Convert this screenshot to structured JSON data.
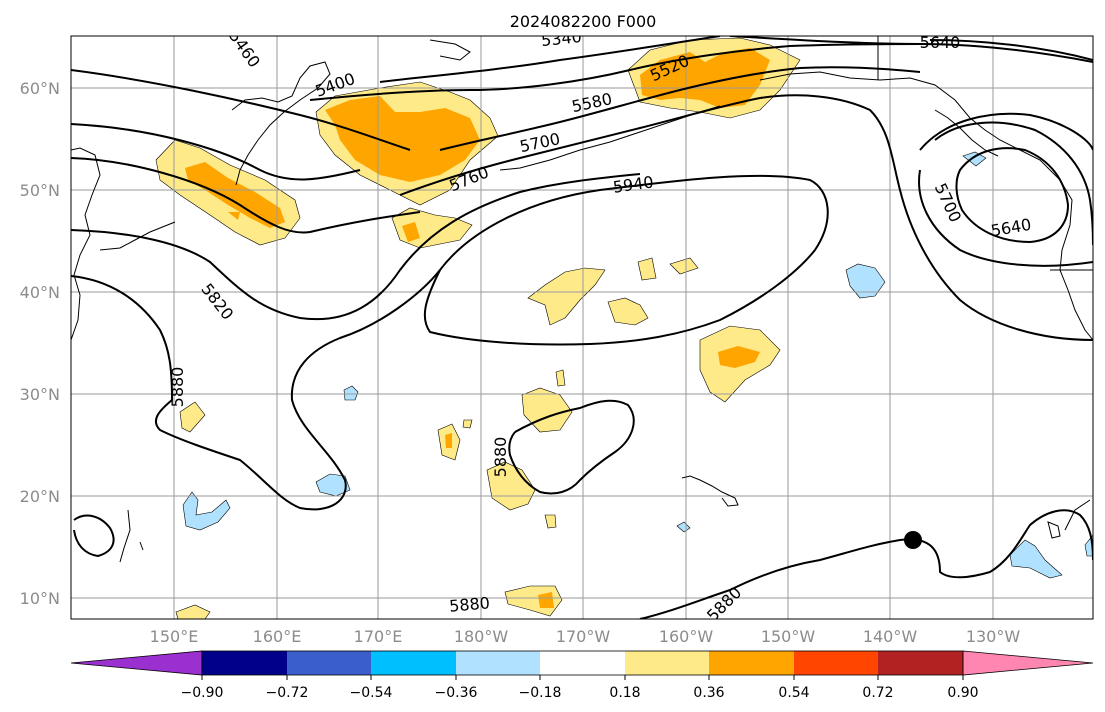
{
  "title": "2024082200 F000",
  "lat_ticks": [
    "60°N",
    "50°N",
    "40°N",
    "30°N",
    "20°N",
    "10°N"
  ],
  "lon_ticks": [
    "150°E",
    "160°E",
    "170°E",
    "180°W",
    "170°W",
    "160°W",
    "150°W",
    "140°W",
    "130°W"
  ],
  "contour_labels": [
    "5460",
    "5400",
    "5340",
    "5520",
    "5580",
    "5640",
    "5700",
    "5760",
    "5940",
    "5700",
    "5640",
    "5820",
    "5880",
    "5880",
    "5880",
    "5880"
  ],
  "colorbar": {
    "ticks": [
      "−0.90",
      "−0.72",
      "−0.54",
      "−0.36",
      "−0.18",
      "0.18",
      "0.36",
      "0.54",
      "0.72",
      "0.90"
    ],
    "colors": [
      "#9b30d0",
      "#00008b",
      "#3a5fcd",
      "#00bfff",
      "#b0e2ff",
      "#ffffff",
      "#ffea8a",
      "#ffa500",
      "#ff4500",
      "#b22222",
      "#ff86b0"
    ]
  },
  "shading_colors": {
    "light_positive": "#ffea8a",
    "positive": "#ffa500",
    "light_negative": "#b0e2ff"
  }
}
